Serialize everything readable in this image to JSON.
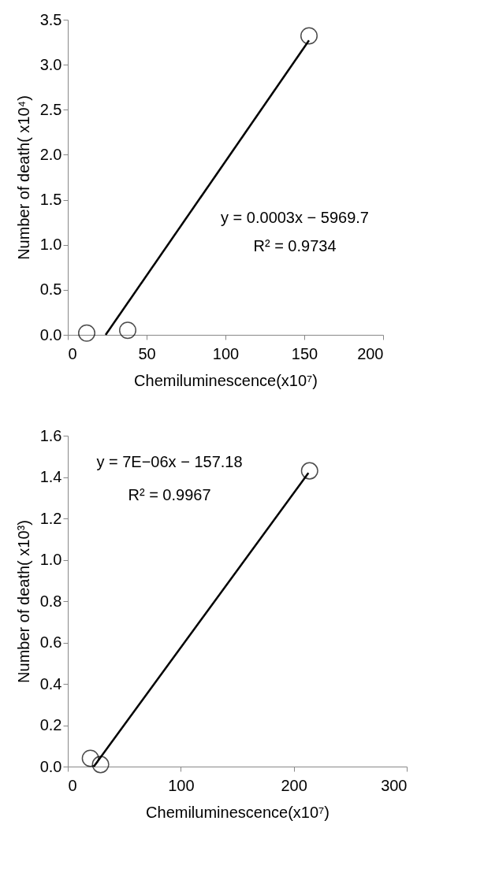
{
  "chart_data": [
    {
      "type": "scatter",
      "xlabel": "Chemiluminescence(x10⁷)",
      "ylabel": "Number of death( x10⁴)",
      "xlim": [
        0,
        200
      ],
      "xticks": [
        0,
        50,
        100,
        150,
        200
      ],
      "ylim": [
        0,
        3.5
      ],
      "yticks": [
        {
          "value": 0,
          "label": "0.0"
        },
        {
          "value": 0.5,
          "label": "0.5"
        },
        {
          "value": 1,
          "label": "1.0"
        },
        {
          "value": 1.5,
          "label": "1.5"
        },
        {
          "value": 2,
          "label": "2.0"
        },
        {
          "value": 2.5,
          "label": "2.5"
        },
        {
          "value": 3,
          "label": "3.0"
        },
        {
          "value": 3.5,
          "label": "3.5"
        }
      ],
      "series": [
        {
          "color": "#000000",
          "marker": "circle",
          "x": [
            12,
            38,
            153
          ],
          "values": [
            0.02,
            0.05,
            3.32
          ]
        },
        {
          "type": "line",
          "color": "#000000",
          "marker": "none",
          "x": [
            24,
            153
          ],
          "values": [
            0,
            3.27
          ]
        }
      ],
      "annotations": [
        "y = 0.0003x − 5969.7",
        "R² = 0.9734"
      ]
    },
    {
      "type": "scatter",
      "xlabel": "Chemiluminescence(x10⁷)",
      "ylabel": "Number of death( x10³)",
      "xlim": [
        0,
        300
      ],
      "xticks": [
        0,
        100,
        200,
        300
      ],
      "ylim": [
        0,
        1.6
      ],
      "yticks": [
        {
          "value": 0,
          "label": "0.0"
        },
        {
          "value": 0.2,
          "label": "0.2"
        },
        {
          "value": 0.4,
          "label": "0.4"
        },
        {
          "value": 0.6,
          "label": "0.6"
        },
        {
          "value": 0.8,
          "label": "0.8"
        },
        {
          "value": 1,
          "label": "1.0"
        },
        {
          "value": 1.2,
          "label": "1.2"
        },
        {
          "value": 1.4,
          "label": "1.4"
        },
        {
          "value": 1.6,
          "label": "1.6"
        }
      ],
      "series": [
        {
          "color": "#000000",
          "marker": "circle",
          "x": [
            20,
            29,
            214
          ],
          "values": [
            0.04,
            0.01,
            1.43
          ]
        },
        {
          "type": "line",
          "color": "#000000",
          "marker": "none",
          "x": [
            23,
            213
          ],
          "values": [
            0,
            1.42
          ]
        }
      ],
      "annotations": [
        "y = 7E−06x − 157.18",
        "R² = 0.9967"
      ]
    }
  ]
}
